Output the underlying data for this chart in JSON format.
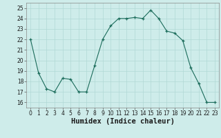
{
  "x": [
    0,
    1,
    2,
    3,
    4,
    5,
    6,
    7,
    8,
    9,
    10,
    11,
    12,
    13,
    14,
    15,
    16,
    17,
    18,
    19,
    20,
    21,
    22,
    23
  ],
  "y": [
    22,
    18.8,
    17.3,
    17.0,
    18.3,
    18.2,
    17.0,
    17.0,
    19.5,
    22.0,
    23.3,
    24.0,
    24.0,
    24.1,
    24.0,
    24.8,
    24.0,
    22.8,
    22.6,
    21.9,
    19.3,
    17.8,
    16.0,
    16.0
  ],
  "xlim": [
    -0.5,
    23.5
  ],
  "ylim": [
    15.5,
    25.5
  ],
  "yticks": [
    16,
    17,
    18,
    19,
    20,
    21,
    22,
    23,
    24,
    25
  ],
  "xticks": [
    0,
    1,
    2,
    3,
    4,
    5,
    6,
    7,
    8,
    9,
    10,
    11,
    12,
    13,
    14,
    15,
    16,
    17,
    18,
    19,
    20,
    21,
    22,
    23
  ],
  "xlabel": "Humidex (Indice chaleur)",
  "line_color": "#1a6b5a",
  "marker": "+",
  "bg_color": "#ceecea",
  "grid_color": "#b0d8d5",
  "tick_label_fontsize": 5.5,
  "xlabel_fontsize": 7.5,
  "title": ""
}
